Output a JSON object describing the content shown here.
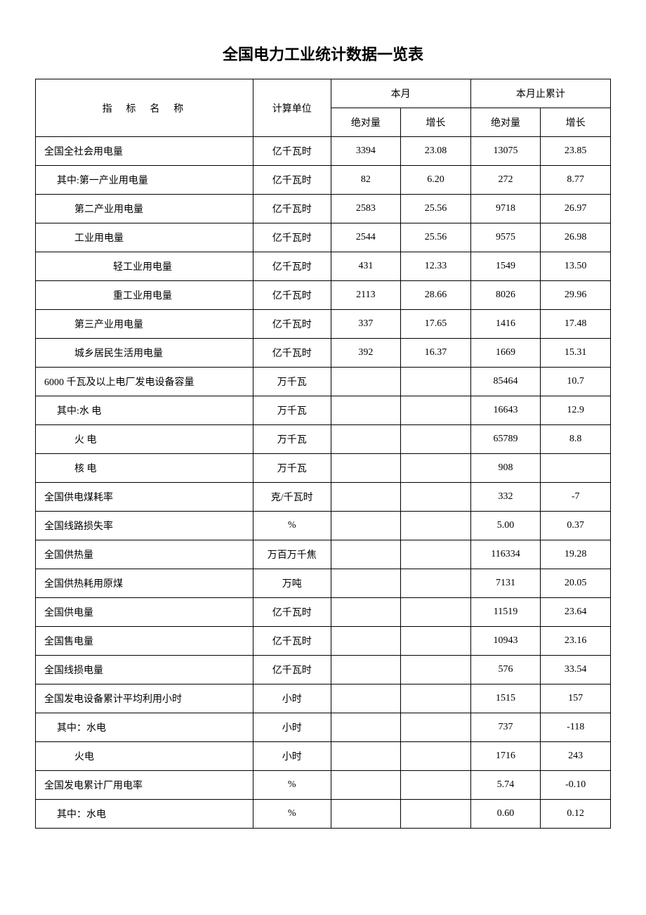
{
  "title": "全国电力工业统计数据一览表",
  "headers": {
    "indicator": "指 标 名 称",
    "unit": "计算单位",
    "current_month": "本月",
    "cumulative": "本月止累计",
    "absolute": "绝对量",
    "growth": "增长"
  },
  "styling": {
    "background_color": "#ffffff",
    "border_color": "#000000",
    "title_fontsize": 22,
    "body_fontsize": 14,
    "font_family_title": "SimHei",
    "font_family_body": "SimSun"
  },
  "rows": [
    {
      "name": "全国全社会用电量",
      "unit": "亿千瓦时",
      "m_abs": "3394",
      "m_grow": "23.08",
      "c_abs": "13075",
      "c_grow": "23.85",
      "indent": 0
    },
    {
      "name": "其中:第一产业用电量",
      "unit": "亿千瓦时",
      "m_abs": "82",
      "m_grow": "6.20",
      "c_abs": "272",
      "c_grow": "8.77",
      "indent": 1
    },
    {
      "name": "第二产业用电量",
      "unit": "亿千瓦时",
      "m_abs": "2583",
      "m_grow": "25.56",
      "c_abs": "9718",
      "c_grow": "26.97",
      "indent": 2
    },
    {
      "name": "工业用电量",
      "unit": "亿千瓦时",
      "m_abs": "2544",
      "m_grow": "25.56",
      "c_abs": "9575",
      "c_grow": "26.98",
      "indent": 2
    },
    {
      "name": "轻工业用电量",
      "unit": "亿千瓦时",
      "m_abs": "431",
      "m_grow": "12.33",
      "c_abs": "1549",
      "c_grow": "13.50",
      "indent": 3
    },
    {
      "name": "重工业用电量",
      "unit": "亿千瓦时",
      "m_abs": "2113",
      "m_grow": "28.66",
      "c_abs": "8026",
      "c_grow": "29.96",
      "indent": 3
    },
    {
      "name": "第三产业用电量",
      "unit": "亿千瓦时",
      "m_abs": "337",
      "m_grow": "17.65",
      "c_abs": "1416",
      "c_grow": "17.48",
      "indent": 2
    },
    {
      "name": "城乡居民生活用电量",
      "unit": "亿千瓦时",
      "m_abs": "392",
      "m_grow": "16.37",
      "c_abs": "1669",
      "c_grow": "15.31",
      "indent": 2
    },
    {
      "name": "6000 千瓦及以上电厂发电设备容量",
      "unit": "万千瓦",
      "m_abs": "",
      "m_grow": "",
      "c_abs": "85464",
      "c_grow": "10.7",
      "indent": 0
    },
    {
      "name": "其中:水 电",
      "unit": "万千瓦",
      "m_abs": "",
      "m_grow": "",
      "c_abs": "16643",
      "c_grow": "12.9",
      "indent": 1
    },
    {
      "name": "火 电",
      "unit": "万千瓦",
      "m_abs": "",
      "m_grow": "",
      "c_abs": "65789",
      "c_grow": "8.8",
      "indent": 2
    },
    {
      "name": "核 电",
      "unit": "万千瓦",
      "m_abs": "",
      "m_grow": "",
      "c_abs": "908",
      "c_grow": "",
      "indent": 2
    },
    {
      "name": "全国供电煤耗率",
      "unit": "克/千瓦时",
      "m_abs": "",
      "m_grow": "",
      "c_abs": "332",
      "c_grow": "-7",
      "indent": 0
    },
    {
      "name": "全国线路损失率",
      "unit": "%",
      "m_abs": "",
      "m_grow": "",
      "c_abs": "5.00",
      "c_grow": "0.37",
      "indent": 0
    },
    {
      "name": "全国供热量",
      "unit": "万百万千焦",
      "m_abs": "",
      "m_grow": "",
      "c_abs": "116334",
      "c_grow": "19.28",
      "indent": 0
    },
    {
      "name": "全国供热耗用原煤",
      "unit": "万吨",
      "m_abs": "",
      "m_grow": "",
      "c_abs": "7131",
      "c_grow": "20.05",
      "indent": 0
    },
    {
      "name": "全国供电量",
      "unit": "亿千瓦时",
      "m_abs": "",
      "m_grow": "",
      "c_abs": "11519",
      "c_grow": "23.64",
      "indent": 0
    },
    {
      "name": "全国售电量",
      "unit": "亿千瓦时",
      "m_abs": "",
      "m_grow": "",
      "c_abs": "10943",
      "c_grow": "23.16",
      "indent": 0
    },
    {
      "name": "全国线损电量",
      "unit": "亿千瓦时",
      "m_abs": "",
      "m_grow": "",
      "c_abs": "576",
      "c_grow": "33.54",
      "indent": 0
    },
    {
      "name": "全国发电设备累计平均利用小时",
      "unit": "小时",
      "m_abs": "",
      "m_grow": "",
      "c_abs": "1515",
      "c_grow": "157",
      "indent": 0
    },
    {
      "name": "其中：水电",
      "unit": "小时",
      "m_abs": "",
      "m_grow": "",
      "c_abs": "737",
      "c_grow": "-118",
      "indent": 1
    },
    {
      "name": "火电",
      "unit": "小时",
      "m_abs": "",
      "m_grow": "",
      "c_abs": "1716",
      "c_grow": "243",
      "indent": 2
    },
    {
      "name": "全国发电累计厂用电率",
      "unit": "%",
      "m_abs": "",
      "m_grow": "",
      "c_abs": "5.74",
      "c_grow": "-0.10",
      "indent": 0
    },
    {
      "name": "其中：水电",
      "unit": "%",
      "m_abs": "",
      "m_grow": "",
      "c_abs": "0.60",
      "c_grow": "0.12",
      "indent": 1
    }
  ]
}
